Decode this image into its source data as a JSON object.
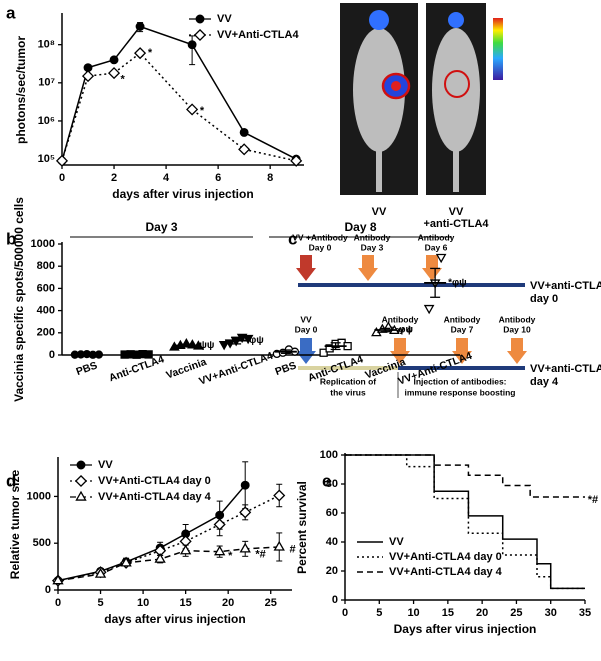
{
  "panels": [
    "a",
    "b",
    "c",
    "d",
    "e"
  ],
  "images": {
    "labels": [
      "VV",
      "VV",
      "+anti-CTLA4"
    ]
  },
  "diagram": {
    "rows": [
      {
        "arrows": [
          [
            "VV +Antibody",
            "Day 0"
          ],
          [
            "Antibody",
            "Day 3"
          ],
          [
            "Antibody",
            "Day 6"
          ]
        ],
        "label": [
          "VV+anti-CTLA4",
          "day 0"
        ]
      },
      {
        "arrows": [
          [
            "VV",
            "Day 0"
          ],
          [
            "Antibody",
            "Day 4"
          ],
          [
            "Antibody",
            "Day 7"
          ],
          [
            "Antibody",
            "Day 10"
          ]
        ],
        "label": [
          "VV+anti-CTLA4",
          "day 4"
        ]
      }
    ],
    "phases": [
      [
        "Replication of",
        "the virus"
      ],
      [
        "Injection of antibodies:",
        "immune response boosting"
      ]
    ]
  },
  "chart_data": [
    {
      "type": "line",
      "log_y": true,
      "ylabel": "photons/sec/tumor",
      "xlabel": "days after virus injection",
      "legend": "upper right",
      "x": [
        0,
        1,
        2,
        3,
        5,
        7,
        9
      ],
      "xlim": [
        0,
        9.3
      ],
      "xticks": [
        0,
        2,
        4,
        6,
        8
      ],
      "ylim": [
        70000,
        600000000
      ],
      "yticks": [
        {
          "value": 100000,
          "label": "10⁵"
        },
        {
          "value": 1000000,
          "label": "10⁶"
        },
        {
          "value": 10000000,
          "label": "10⁷"
        },
        {
          "value": 100000000,
          "label": "10⁸"
        }
      ],
      "series": [
        {
          "name": "VV",
          "color": "#000000",
          "marker": "circle",
          "filled": true,
          "dash": "solid",
          "values": [
            90000,
            25000000,
            40000000,
            300000000,
            100000000,
            500000,
            100000
          ],
          "errors": [
            null,
            null,
            null,
            80000000,
            70000000,
            null,
            null
          ]
        },
        {
          "name": "VV+Anti-CTLA4",
          "color": "#000000",
          "marker": "diamond",
          "filled": false,
          "dash": "dotted",
          "values": [
            90000,
            15000000,
            18000000,
            60000000,
            2000000,
            180000,
            90000
          ],
          "errors": [
            null,
            null,
            null,
            null,
            null,
            null,
            null
          ]
        }
      ],
      "annotations": [
        {
          "text": "*",
          "x": 2.25,
          "y": 12000000
        },
        {
          "text": "*",
          "x": 3.3,
          "y": 60000000
        },
        {
          "text": "*",
          "x": 5.3,
          "y": 1800000
        }
      ]
    },
    {
      "type": "dotplot",
      "ylabel": "Vaccinia specific spots/500000 cells",
      "groups": [
        "Day 3",
        "Day 8"
      ],
      "categories": [
        "PBS",
        "Anti-CTLA4",
        "Vaccinia",
        "VV+Anti-CTLA4",
        "PBS",
        "Anti-CTLA4",
        "Vaccinia",
        "VV+Anti-CTLA4"
      ],
      "markers": [
        "circle",
        "square",
        "triangle",
        "triangle-down",
        "circle",
        "square",
        "triangle",
        "triangle-down"
      ],
      "filled": [
        true,
        true,
        true,
        true,
        false,
        false,
        false,
        false
      ],
      "color": "#000000",
      "values": [
        5,
        5,
        85,
        130,
        30,
        80,
        225,
        650
      ],
      "errors": [
        2,
        2,
        12,
        30,
        15,
        30,
        15,
        130
      ],
      "points": [
        [
          3,
          5,
          8,
          2,
          4
        ],
        [
          4,
          6,
          3,
          8,
          5
        ],
        [
          70,
          85,
          100,
          90,
          80
        ],
        [
          95,
          110,
          130,
          160,
          150
        ],
        [
          10,
          20,
          50,
          30
        ],
        [
          20,
          60,
          100,
          110,
          80
        ],
        [
          200,
          230,
          250,
          220
        ],
        [
          420,
          650,
          880
        ]
      ],
      "value_annotations": [
        null,
        null,
        "ψψ",
        "φψ",
        null,
        null,
        "φψ",
        "*φψ"
      ],
      "ylim": [
        0,
        1000
      ],
      "yticks": [
        0,
        200,
        400,
        600,
        800,
        1000
      ]
    },
    {
      "type": "line",
      "ylabel": "Relative tumor size",
      "xlabel": "days after virus injection",
      "legend": "upper left",
      "x": [
        0,
        5,
        8,
        12,
        15,
        19,
        22,
        26
      ],
      "xlim": [
        0,
        27.5
      ],
      "xticks": [
        0,
        5,
        10,
        15,
        20,
        25
      ],
      "ylim": [
        0,
        1400
      ],
      "yticks": [
        0,
        500,
        1000
      ],
      "series": [
        {
          "name": "VV",
          "color": "#000000",
          "marker": "circle",
          "filled": true,
          "dash": "solid",
          "values": [
            100,
            200,
            300,
            450,
            600,
            800,
            1120,
            null
          ],
          "errors": [
            10,
            20,
            40,
            60,
            100,
            150,
            250,
            null
          ]
        },
        {
          "name": "VV+Anti-CTLA4 day 0",
          "color": "#000000",
          "marker": "diamond",
          "filled": false,
          "dash": "dotted",
          "values": [
            100,
            190,
            290,
            420,
            520,
            700,
            830,
            1010
          ],
          "errors": [
            10,
            20,
            30,
            50,
            80,
            120,
            80,
            120
          ]
        },
        {
          "name": "VV+Anti-CTLA4 day 4",
          "color": "#000000",
          "marker": "triangle",
          "filled": false,
          "dash": "dashed",
          "values": [
            100,
            170,
            290,
            330,
            420,
            410,
            440,
            460
          ],
          "errors": [
            10,
            20,
            30,
            40,
            60,
            60,
            80,
            150
          ]
        }
      ],
      "annotations": [
        {
          "text": "*",
          "x": 20,
          "y": 360
        },
        {
          "text": "*#",
          "x": 23.2,
          "y": 380
        },
        {
          "text": "#",
          "x": 27.2,
          "y": 430
        }
      ]
    },
    {
      "type": "step",
      "ylabel": "Percent survival",
      "xlabel": "Days after virus injection",
      "legend": "lower left",
      "xlim": [
        0,
        35
      ],
      "xticks": [
        0,
        5,
        10,
        15,
        20,
        25,
        30,
        35
      ],
      "ylim": [
        0,
        100
      ],
      "yticks": [
        0,
        20,
        40,
        60,
        80,
        100
      ],
      "series": [
        {
          "name": "VV",
          "color": "#000000",
          "dash": "solid",
          "x": [
            0,
            13,
            18,
            23,
            28,
            30,
            35
          ],
          "values": [
            100,
            75,
            58,
            42,
            25,
            8,
            8
          ]
        },
        {
          "name": "VV+Anti-CTLA4 day 0",
          "color": "#000000",
          "dash": "dotted",
          "x": [
            0,
            9,
            13,
            18,
            23,
            28,
            30,
            35
          ],
          "values": [
            100,
            92,
            70,
            46,
            31,
            16,
            8,
            8
          ]
        },
        {
          "name": "VV+Anti-CTLA4 day 4",
          "color": "#000000",
          "dash": "dashed",
          "x": [
            0,
            13,
            18,
            23,
            27,
            35
          ],
          "values": [
            100,
            93,
            86,
            79,
            71,
            71
          ]
        }
      ],
      "annotations": [
        {
          "text": "*#",
          "x": 35.4,
          "y": 69
        }
      ]
    }
  ]
}
